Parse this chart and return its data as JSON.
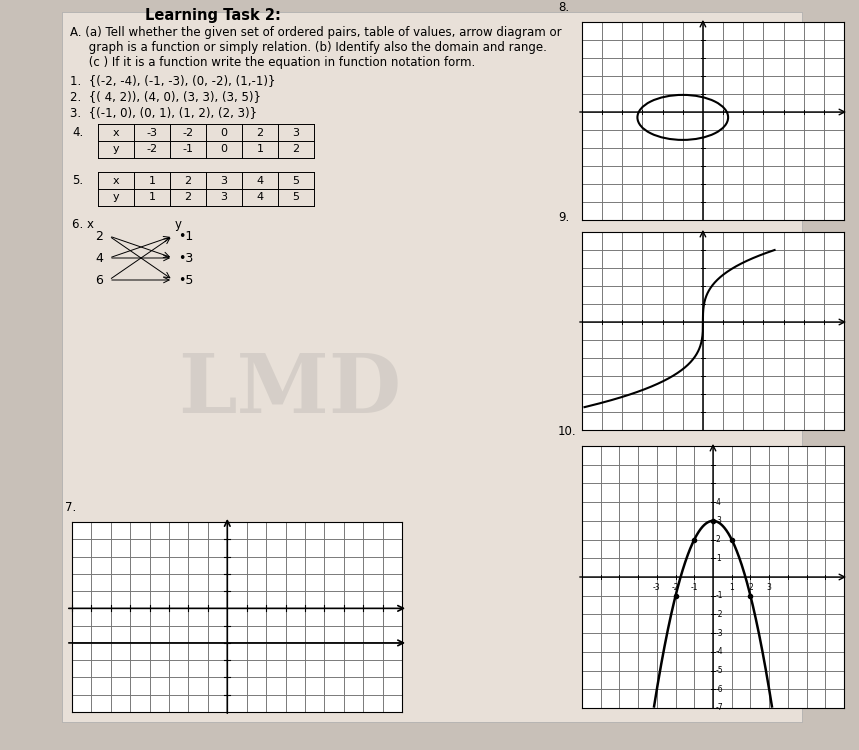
{
  "title": "Learning Task 2:",
  "sub_a": "A. (a) Tell whether the given set of ordered pairs, table of values, arrow diagram or",
  "sub_b": "     graph is a function or simply relation. (b) Identify also the domain and range.",
  "sub_c": "     (c ) If it is a function write the equation in function notation form.",
  "item1": "1.  {(-2, -4), (-1, -3), (0, -2), (1,-1)}",
  "item2": "2.  {( 4, 2)), (4, 0), (3, 3), (3, 5)}",
  "item3": "3.  {(-1, 0), (0, 1), (1, 2), (2, 3)}",
  "table4_x": [
    "-3",
    "-2",
    "0",
    "2",
    "3"
  ],
  "table4_y": [
    "-2",
    "-1",
    "0",
    "1",
    "2"
  ],
  "table5_x": [
    "1",
    "2",
    "3",
    "4",
    "5"
  ],
  "table5_y": [
    "1",
    "2",
    "3",
    "4",
    "5"
  ],
  "arrow6_x": [
    "2",
    "4",
    "6"
  ],
  "arrow6_y": [
    "1",
    "3",
    "5"
  ],
  "bg_color": "#c8c0b8",
  "paper_color": "#e8e0d8"
}
